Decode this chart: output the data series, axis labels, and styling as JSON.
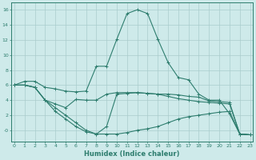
{
  "xlabel": "Humidex (Indice chaleur)",
  "x": [
    0,
    1,
    2,
    3,
    4,
    5,
    6,
    7,
    8,
    9,
    10,
    11,
    12,
    13,
    14,
    15,
    16,
    17,
    18,
    19,
    20,
    21,
    22,
    23
  ],
  "line1": [
    6.0,
    6.5,
    6.5,
    5.7,
    5.5,
    5.2,
    5.1,
    5.2,
    8.5,
    8.5,
    12.1,
    15.5,
    16.0,
    15.5,
    12.1,
    9.0,
    7.0,
    6.7,
    4.8,
    4.0,
    4.0,
    2.2,
    -0.5,
    -0.6
  ],
  "line2": [
    6.0,
    6.0,
    5.7,
    4.0,
    3.5,
    3.0,
    4.1,
    4.0,
    4.0,
    4.8,
    5.0,
    5.0,
    5.0,
    4.9,
    4.8,
    4.8,
    4.7,
    4.5,
    4.4,
    3.9,
    3.8,
    3.7,
    -0.5,
    -0.6
  ],
  "line3": [
    6.0,
    6.0,
    5.7,
    4.0,
    2.5,
    1.5,
    0.5,
    -0.2,
    -0.5,
    0.5,
    4.8,
    4.9,
    5.0,
    4.9,
    4.8,
    4.5,
    4.2,
    4.0,
    3.8,
    3.7,
    3.6,
    3.5,
    -0.5,
    -0.6
  ],
  "line4": [
    6.0,
    6.0,
    5.7,
    4.0,
    3.0,
    2.0,
    1.0,
    0.0,
    -0.5,
    -0.5,
    -0.5,
    -0.3,
    0.0,
    0.2,
    0.5,
    1.0,
    1.5,
    1.8,
    2.0,
    2.2,
    2.4,
    2.5,
    -0.5,
    -0.6
  ],
  "color": "#2e7d6e",
  "bg_color": "#ceeaea",
  "grid_color": "#aacccc",
  "ylim": [
    -1.5,
    17
  ],
  "xlim": [
    -0.3,
    23.3
  ],
  "yticks": [
    0,
    2,
    4,
    6,
    8,
    10,
    12,
    14,
    16
  ],
  "ytick_labels": [
    "-0",
    "2",
    "4",
    "6",
    "8",
    "10",
    "12",
    "14",
    "16"
  ]
}
